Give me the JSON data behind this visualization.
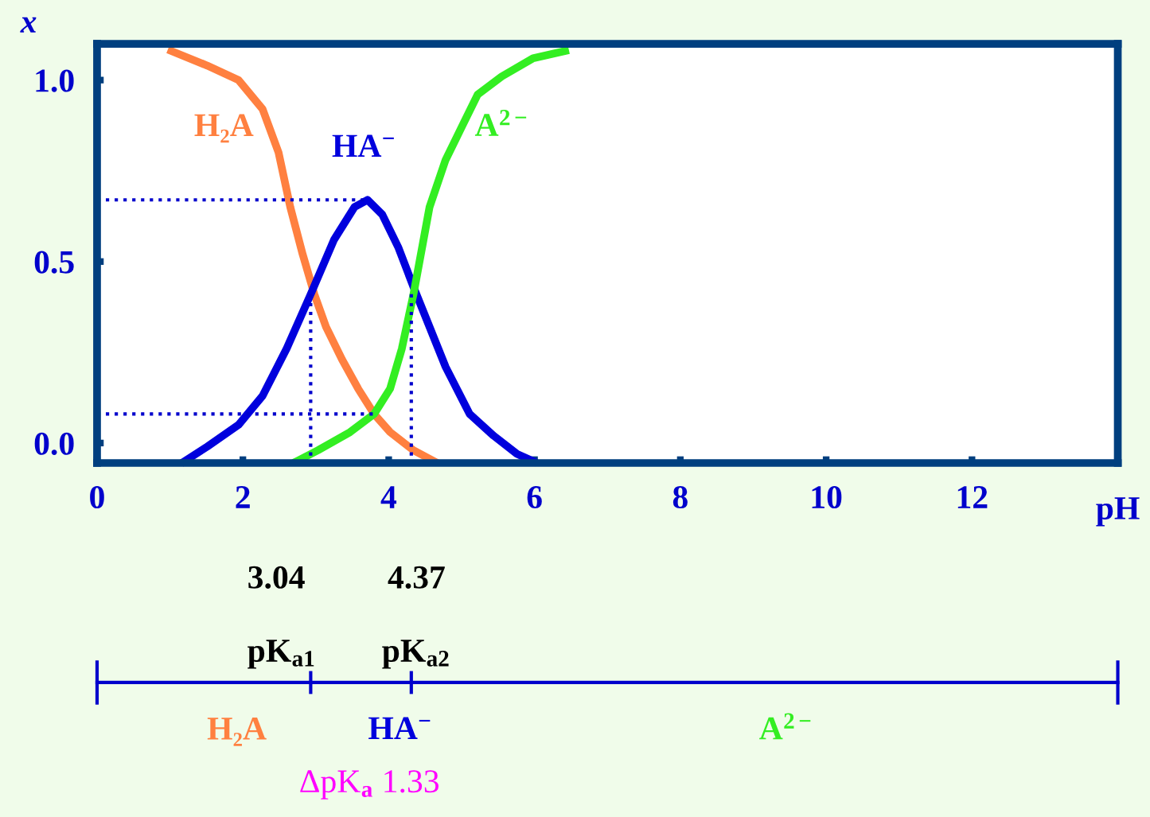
{
  "chart_data": {
    "type": "line",
    "xlabel": "pH",
    "ylabel": "x",
    "xlim": [
      0,
      14
    ],
    "ylim": [
      -0.055,
      1.1
    ],
    "xticks": [
      0,
      2,
      4,
      6,
      8,
      10,
      12
    ],
    "yticks": [
      {
        "value": 0,
        "label": "0.0"
      },
      {
        "value": 0.5,
        "label": "0.5"
      },
      {
        "value": 1,
        "label": "1.0"
      }
    ],
    "grid": false,
    "legend": false,
    "marker": "none",
    "line_style": "solid",
    "series": [
      {
        "name": "H₂A",
        "color": "#ff8040",
        "x": [
          1.02,
          1.51,
          1.94,
          2.27,
          2.49,
          2.65,
          2.82,
          2.98,
          3.14,
          3.36,
          3.58,
          3.8,
          4.02,
          4.34,
          4.62
        ],
        "values": [
          1.08,
          1.04,
          1.0,
          0.92,
          0.8,
          0.65,
          0.52,
          0.41,
          0.32,
          0.23,
          0.15,
          0.08,
          0.03,
          -0.02,
          -0.05
        ]
      },
      {
        "name": "HA$^{−}$",
        "color": "#0000dd",
        "x": [
          1.2,
          1.51,
          1.94,
          2.27,
          2.6,
          2.93,
          3.25,
          3.53,
          3.71,
          3.91,
          4.13,
          4.34,
          4.56,
          4.78,
          5.11,
          5.44,
          5.76,
          5.98
        ],
        "values": [
          -0.05,
          -0.01,
          0.05,
          0.13,
          0.26,
          0.41,
          0.56,
          0.65,
          0.67,
          0.63,
          0.54,
          0.43,
          0.32,
          0.21,
          0.08,
          0.02,
          -0.03,
          -0.05
        ]
      },
      {
        "name": "A$^{2−}$",
        "color": "#33ee22",
        "x": [
          2.74,
          3.03,
          3.47,
          3.8,
          4.02,
          4.18,
          4.34,
          4.56,
          4.78,
          5.0,
          5.22,
          5.55,
          5.98,
          6.42
        ],
        "values": [
          -0.05,
          -0.02,
          0.03,
          0.08,
          0.15,
          0.26,
          0.41,
          0.65,
          0.78,
          0.87,
          0.96,
          1.01,
          1.06,
          1.08
        ]
      },
      {
        "type": "line",
        "line_style": "dotted",
        "color": "#0000cc",
        "x": [
          0,
          3.71
        ],
        "values": [
          0.67,
          0.67
        ]
      },
      {
        "type": "line",
        "line_style": "dotted",
        "color": "#0000cc",
        "x": [
          0,
          3.8
        ],
        "values": [
          0.08,
          0.08
        ]
      },
      {
        "type": "line",
        "line_style": "dotted",
        "color": "#0000cc",
        "x": [
          2.93,
          2.93
        ],
        "values": [
          0.41,
          -0.055
        ]
      },
      {
        "type": "line",
        "line_style": "dotted",
        "color": "#0000cc",
        "x": [
          4.31,
          4.31
        ],
        "values": [
          0.41,
          -0.055
        ]
      }
    ],
    "annotations": [
      "3.04",
      "4.37",
      "pK$_{a1}$",
      "pK$_{a2}$",
      "H₂A",
      "HA$^{−}$",
      "A$^{2−}$",
      "ΔpK$_{a}$ 1.33"
    ]
  }
}
